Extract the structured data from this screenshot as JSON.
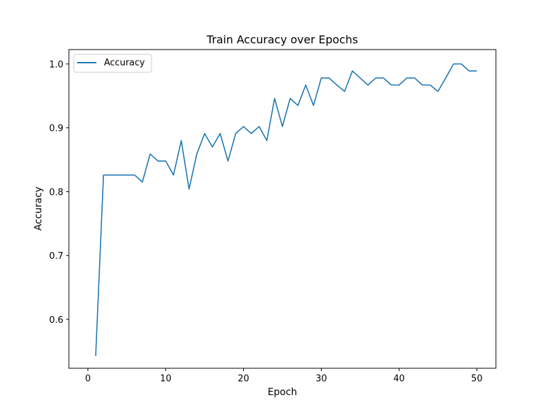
{
  "chart_data": {
    "type": "line",
    "title": "Train Accuracy over Epochs",
    "xlabel": "Epoch",
    "ylabel": "Accuracy",
    "xlim": [
      -2.45,
      52.45
    ],
    "ylim": [
      0.5235,
      1.0225
    ],
    "xticks": [
      0,
      10,
      20,
      30,
      40,
      50
    ],
    "yticks": [
      0.6,
      0.7,
      0.8,
      0.9,
      1.0
    ],
    "xtick_labels": [
      "0",
      "10",
      "20",
      "30",
      "40",
      "50"
    ],
    "ytick_labels": [
      "0.6",
      "0.7",
      "0.8",
      "0.9",
      "1.0"
    ],
    "grid": false,
    "legend": {
      "position": "top-left"
    },
    "series": [
      {
        "name": "Accuracy",
        "color": "#1f77b4",
        "x": [
          1,
          2,
          3,
          4,
          5,
          6,
          7,
          8,
          9,
          10,
          11,
          12,
          13,
          14,
          15,
          16,
          17,
          18,
          19,
          20,
          21,
          22,
          23,
          24,
          25,
          26,
          27,
          28,
          29,
          30,
          31,
          32,
          33,
          34,
          35,
          36,
          37,
          38,
          39,
          40,
          41,
          42,
          43,
          44,
          45,
          46,
          47,
          48,
          49,
          50
        ],
        "y": [
          0.543,
          0.826,
          0.826,
          0.826,
          0.826,
          0.826,
          0.815,
          0.859,
          0.848,
          0.848,
          0.826,
          0.88,
          0.804,
          0.859,
          0.891,
          0.87,
          0.891,
          0.848,
          0.891,
          0.902,
          0.891,
          0.902,
          0.88,
          0.946,
          0.902,
          0.946,
          0.935,
          0.967,
          0.935,
          0.978,
          0.978,
          0.967,
          0.957,
          0.989,
          0.978,
          0.967,
          0.978,
          0.978,
          0.967,
          0.967,
          0.978,
          0.978,
          0.967,
          0.967,
          0.957,
          0.978,
          1.0,
          1.0,
          0.989,
          0.989
        ]
      }
    ]
  }
}
